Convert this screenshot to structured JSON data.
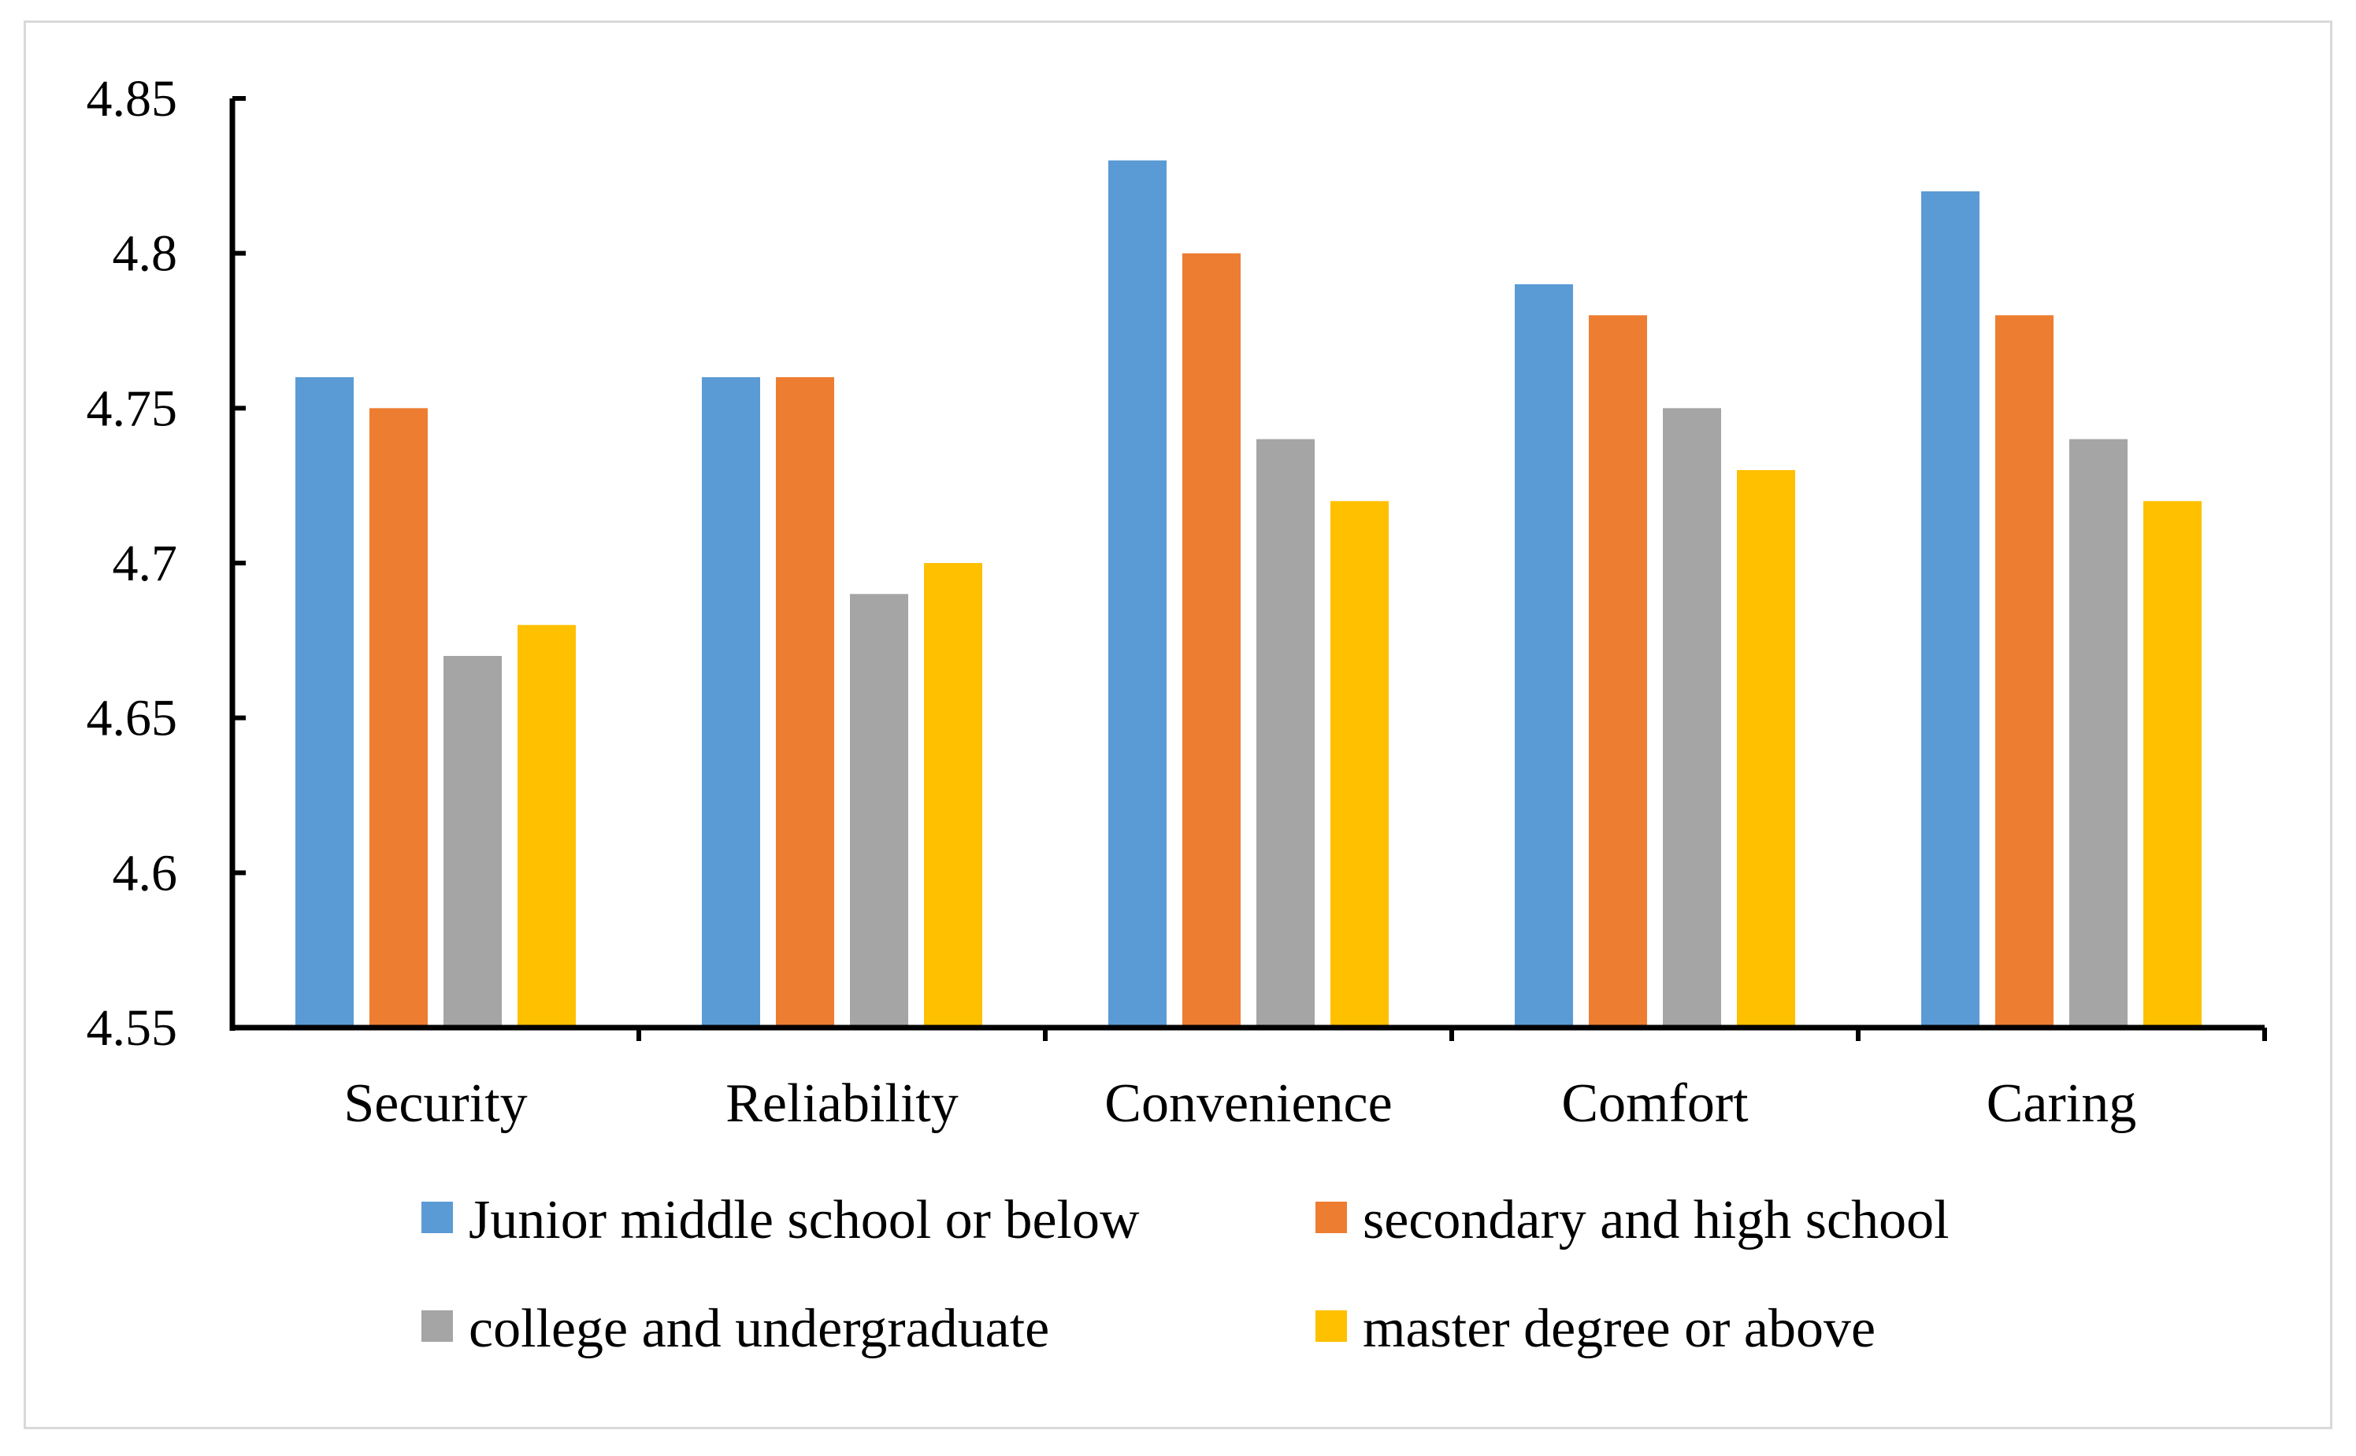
{
  "chart_data": {
    "type": "bar",
    "categories": [
      "Security",
      "Reliability",
      "Convenience",
      "Comfort",
      "Caring"
    ],
    "series": [
      {
        "name": "Junior middle school or below",
        "color": "#5b9bd5",
        "values": [
          4.76,
          4.76,
          4.83,
          4.79,
          4.82
        ]
      },
      {
        "name": "secondary and high school",
        "color": "#ed7d31",
        "values": [
          4.75,
          4.76,
          4.8,
          4.78,
          4.78
        ]
      },
      {
        "name": "college and undergraduate",
        "color": "#a5a5a5",
        "values": [
          4.67,
          4.69,
          4.74,
          4.75,
          4.74
        ]
      },
      {
        "name": "master degree or above",
        "color": "#ffc000",
        "values": [
          4.68,
          4.7,
          4.72,
          4.73,
          4.72
        ]
      }
    ],
    "yticks": [
      "4.55",
      "4.6",
      "4.65",
      "4.7",
      "4.75",
      "4.8",
      "4.85"
    ],
    "ylim": [
      4.55,
      4.85
    ],
    "title": "",
    "xlabel": "",
    "ylabel": "",
    "grid": false,
    "legend_position": "bottom"
  }
}
